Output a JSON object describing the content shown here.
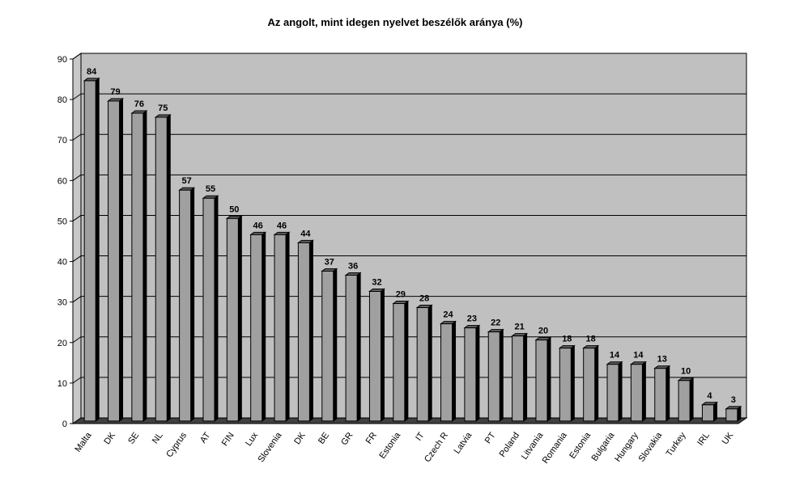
{
  "chart_data": {
    "type": "bar",
    "title": "Az angolt, mint idegen nyelvet beszélők aránya (%)",
    "xlabel": "",
    "ylabel": "",
    "ylim": [
      0,
      90
    ],
    "yticks": [
      0,
      10,
      20,
      30,
      40,
      50,
      60,
      70,
      80,
      90
    ],
    "grid": true,
    "legend": "none",
    "categories": [
      "Malta",
      "DK",
      "SE",
      "NL",
      "Cyprus",
      "AT",
      "FIN",
      "Lux",
      "Slovenia",
      "DK",
      "BE",
      "GR",
      "FR",
      "Estonia",
      "IT",
      "Czech R",
      "Latvia",
      "PT",
      "Poland",
      "Litvania",
      "Romania",
      "Estonia",
      "Bulgaria",
      "Hungary",
      "Slovakia",
      "Turkey",
      "IRL",
      "UK"
    ],
    "values": [
      84,
      79,
      76,
      75,
      57,
      55,
      50,
      46,
      46,
      44,
      37,
      36,
      32,
      29,
      28,
      24,
      23,
      22,
      21,
      20,
      18,
      18,
      14,
      14,
      13,
      10,
      4,
      3
    ],
    "colors": {
      "plot_background": "#c0c0c0",
      "bar_front": "#a0a0a0",
      "bar_side": "#000000",
      "bar_top": "#606060",
      "floor": "#404040"
    }
  }
}
